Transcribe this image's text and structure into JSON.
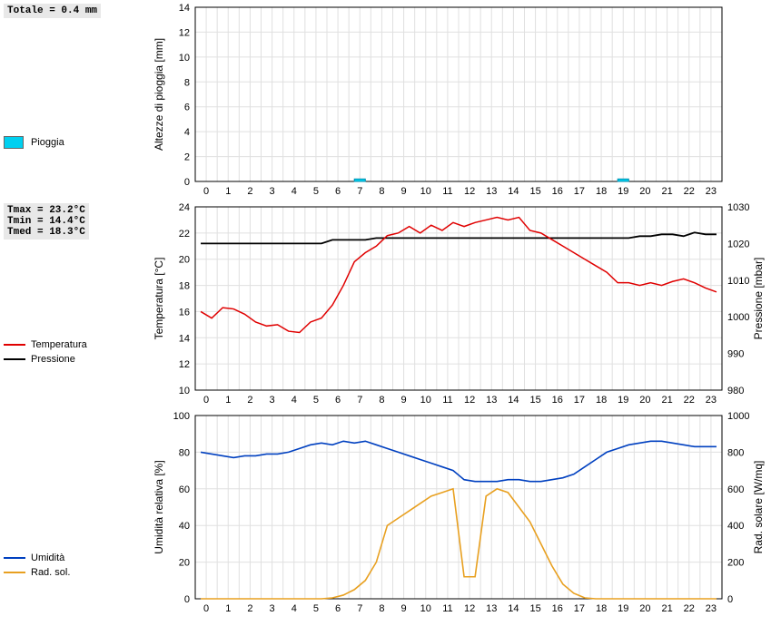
{
  "global": {
    "background": "#ffffff",
    "grid_color": "#e0e0e0",
    "axis_color": "#000000",
    "tick_fontsize": 11,
    "label_fontsize": 12,
    "x_categories": [
      "0",
      "1",
      "2",
      "3",
      "4",
      "5",
      "6",
      "7",
      "8",
      "9",
      "10",
      "11",
      "12",
      "13",
      "14",
      "15",
      "16",
      "17",
      "18",
      "19",
      "20",
      "21",
      "22",
      "23"
    ]
  },
  "rain": {
    "info": "Totale = 0.4 mm",
    "legend_label": "Pioggia",
    "swatch_color": "#00d0f0",
    "ylabel": "Altezze di pioggia [mm]",
    "ylim": [
      0,
      14
    ],
    "ytick_step": 2,
    "bar_color": "#00d0f0",
    "values": [
      0,
      0,
      0,
      0,
      0,
      0,
      0,
      0.2,
      0,
      0,
      0,
      0,
      0,
      0,
      0,
      0,
      0,
      0,
      0,
      0.2,
      0,
      0,
      0,
      0
    ]
  },
  "temp_press": {
    "info_lines": [
      "Tmax = 23.2°C",
      "Tmin = 14.4°C",
      "Tmed = 18.3°C"
    ],
    "legend": [
      {
        "label": "Temperatura",
        "color": "#e00000"
      },
      {
        "label": "Pressione",
        "color": "#000000"
      }
    ],
    "ylabel_left": "Temperatura [°C]",
    "ylabel_right": "Pressione [mbar]",
    "ylim_left": [
      10,
      24
    ],
    "ytick_step_left": 2,
    "ylim_right": [
      980,
      1030
    ],
    "ytick_step_right": 10,
    "temp_color": "#e00000",
    "press_color": "#000000",
    "temp_values": [
      16.0,
      15.5,
      16.3,
      16.2,
      15.8,
      15.2,
      14.9,
      15.0,
      14.5,
      14.4,
      15.2,
      15.5,
      16.5,
      18.0,
      19.8,
      20.5,
      21.0,
      21.8,
      22.0,
      22.5,
      22.0,
      22.6,
      22.2,
      22.8,
      22.5,
      22.8,
      23.0,
      23.2,
      23.0,
      23.2,
      22.2,
      22.0,
      21.5,
      21.0,
      20.5,
      20.0,
      19.5,
      19.0,
      18.2,
      18.2,
      18.0,
      18.2,
      18.0,
      18.3,
      18.5,
      18.2,
      17.8,
      17.5
    ],
    "press_values": [
      1020,
      1020,
      1020,
      1020,
      1020,
      1020,
      1020,
      1020,
      1020,
      1020,
      1020,
      1020,
      1021,
      1021,
      1021,
      1021,
      1021.5,
      1021.5,
      1021.5,
      1021.5,
      1021.5,
      1021.5,
      1021.5,
      1021.5,
      1021.5,
      1021.5,
      1021.5,
      1021.5,
      1021.5,
      1021.5,
      1021.5,
      1021.5,
      1021.5,
      1021.5,
      1021.5,
      1021.5,
      1021.5,
      1021.5,
      1021.5,
      1021.5,
      1022,
      1022,
      1022.5,
      1022.5,
      1022,
      1023,
      1022.5,
      1022.5
    ]
  },
  "humid_rad": {
    "legend": [
      {
        "label": "Umidità",
        "color": "#0040c0"
      },
      {
        "label": "Rad. sol.",
        "color": "#e8a020"
      }
    ],
    "ylabel_left": "Umidità relativa [%]",
    "ylabel_right": "Rad. solare [W/mq]",
    "ylim_left": [
      0,
      100
    ],
    "ytick_step_left": 20,
    "ylim_right": [
      0,
      1000
    ],
    "ytick_step_right": 200,
    "humid_color": "#0040c0",
    "rad_color": "#e8a020",
    "humid_values": [
      80,
      79,
      78,
      77,
      78,
      78,
      79,
      79,
      80,
      82,
      84,
      85,
      84,
      86,
      85,
      86,
      84,
      82,
      80,
      78,
      76,
      74,
      72,
      70,
      65,
      64,
      64,
      64,
      65,
      65,
      64,
      64,
      65,
      66,
      68,
      72,
      76,
      80,
      82,
      84,
      85,
      86,
      86,
      85,
      84,
      83,
      83,
      83
    ],
    "rad_values": [
      0,
      0,
      0,
      0,
      0,
      0,
      0,
      0,
      0,
      0,
      0,
      0,
      5,
      20,
      50,
      100,
      200,
      400,
      440,
      480,
      520,
      560,
      580,
      600,
      120,
      120,
      560,
      600,
      580,
      500,
      420,
      300,
      180,
      80,
      30,
      5,
      0,
      0,
      0,
      0,
      0,
      0,
      0,
      0,
      0,
      0,
      0,
      0
    ]
  }
}
